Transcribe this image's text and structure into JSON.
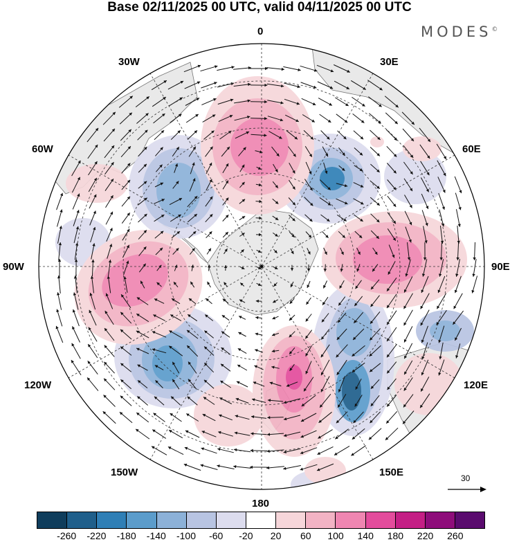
{
  "title": "Base 02/11/2025 00 UTC, valid 04/11/2025 00 UTC",
  "brand": "MODES",
  "brand_mark": "©",
  "longitude_labels": [
    "0",
    "30E",
    "60E",
    "90E",
    "120E",
    "150E",
    "180",
    "150W",
    "120W",
    "90W",
    "60W",
    "30W"
  ],
  "reference_vector": "30",
  "colorbar": {
    "ticks": [
      "-260",
      "-220",
      "-180",
      "-140",
      "-100",
      "-60",
      "-20",
      "20",
      "60",
      "100",
      "140",
      "180",
      "220",
      "260"
    ],
    "colors": [
      "#0f3d5c",
      "#1f5f8b",
      "#2f7fb6",
      "#5b9ccb",
      "#8cb1d8",
      "#b8c4e2",
      "#dcdcee",
      "#ffffff",
      "#f6d6da",
      "#f2b3c4",
      "#ef86b1",
      "#e34c9c",
      "#c41f85",
      "#8e0d7a",
      "#5a0b6e"
    ]
  },
  "colors": {
    "land": "#e9e9e9",
    "ocean": "#ffffff",
    "pos1": "#f6d6da",
    "pos2": "#f2b3c4",
    "pos3": "#ef86b1",
    "pos4": "#e34c9c",
    "neg1": "#dcdcee",
    "neg2": "#b8c4e2",
    "neg3": "#8cb1d8",
    "neg4": "#5b9ccb",
    "neg5": "#2f7fb6"
  }
}
